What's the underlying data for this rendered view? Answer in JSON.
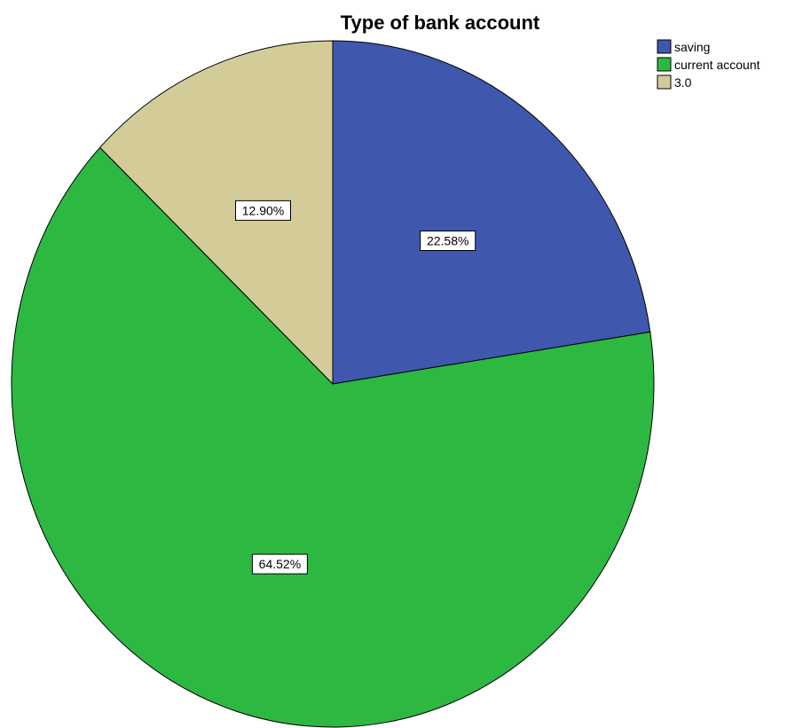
{
  "chart_data": {
    "type": "pie",
    "title": "Type of bank account",
    "categories": [
      "saving",
      "current account",
      "3.0"
    ],
    "values": [
      22.58,
      64.52,
      12.9
    ],
    "data_labels": [
      "22.58%",
      "64.52%",
      "12.90%"
    ],
    "colors": [
      "#3f57ad",
      "#2db842",
      "#d4cc98"
    ],
    "start_angle": "12 o'clock",
    "direction": "clockwise",
    "legend_position": "top-right"
  }
}
